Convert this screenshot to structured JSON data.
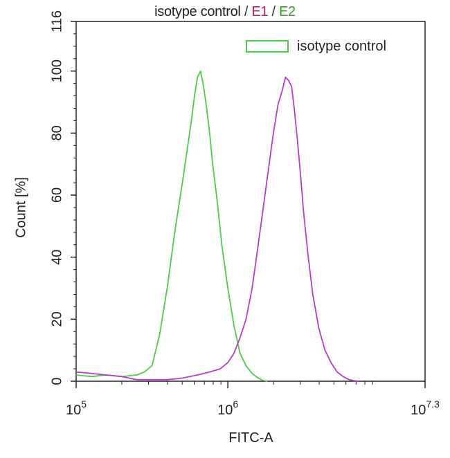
{
  "chart_data": {
    "type": "line",
    "title_parts": [
      "isotype control",
      "E1",
      "E2"
    ],
    "title_separator": " / ",
    "title_colors": [
      "#222222",
      "#b3206b",
      "#3a9a2e"
    ],
    "xlabel": "FITC-A",
    "ylabel": "Count [%]",
    "xscale": "log10",
    "xlim": [
      5,
      7.3
    ],
    "xticks": [
      {
        "base": "10",
        "exp": "5"
      },
      {
        "base": "10",
        "exp": "6"
      },
      {
        "base": "10",
        "exp": "7.3"
      }
    ],
    "ylim": [
      0,
      116
    ],
    "yticks": [
      "0",
      "20",
      "40",
      "60",
      "80",
      "100",
      "116"
    ],
    "legend": {
      "label": "isotype control",
      "color": "#4fc84f",
      "placement": "top-right"
    },
    "series": [
      {
        "color": "#4fc84f",
        "x": [
          5.0,
          5.1,
          5.2,
          5.3,
          5.4,
          5.45,
          5.5,
          5.55,
          5.6,
          5.65,
          5.7,
          5.73,
          5.76,
          5.78,
          5.8,
          5.82,
          5.84,
          5.86,
          5.88,
          5.9,
          5.93,
          5.96,
          6.0,
          6.04,
          6.08,
          6.12,
          6.16,
          6.2,
          6.23,
          6.26
        ],
        "y": [
          2,
          1.5,
          2,
          1.5,
          2,
          3,
          5,
          15,
          30,
          48,
          64,
          74,
          84,
          92,
          98,
          100,
          95,
          88,
          80,
          70,
          58,
          44,
          30,
          18,
          9,
          5,
          2.5,
          1,
          0.3,
          0
        ]
      },
      {
        "color": "#b042c2",
        "x": [
          5.0,
          5.1,
          5.2,
          5.3,
          5.4,
          5.5,
          5.6,
          5.7,
          5.8,
          5.88,
          5.95,
          6.0,
          6.04,
          6.08,
          6.12,
          6.16,
          6.2,
          6.25,
          6.3,
          6.33,
          6.36,
          6.38,
          6.4,
          6.42,
          6.44,
          6.46,
          6.48,
          6.5,
          6.53,
          6.56,
          6.6,
          6.64,
          6.68,
          6.72,
          6.76,
          6.8,
          6.83,
          6.86
        ],
        "y": [
          3,
          2.5,
          2,
          1.5,
          0.5,
          0.5,
          0.5,
          1,
          2,
          3,
          4,
          6,
          9,
          14,
          20,
          30,
          44,
          62,
          80,
          89,
          94,
          98,
          97,
          95,
          87,
          77,
          66,
          54,
          40,
          28,
          17,
          10,
          6,
          3,
          1.5,
          0.5,
          0.2,
          0
        ]
      }
    ]
  }
}
